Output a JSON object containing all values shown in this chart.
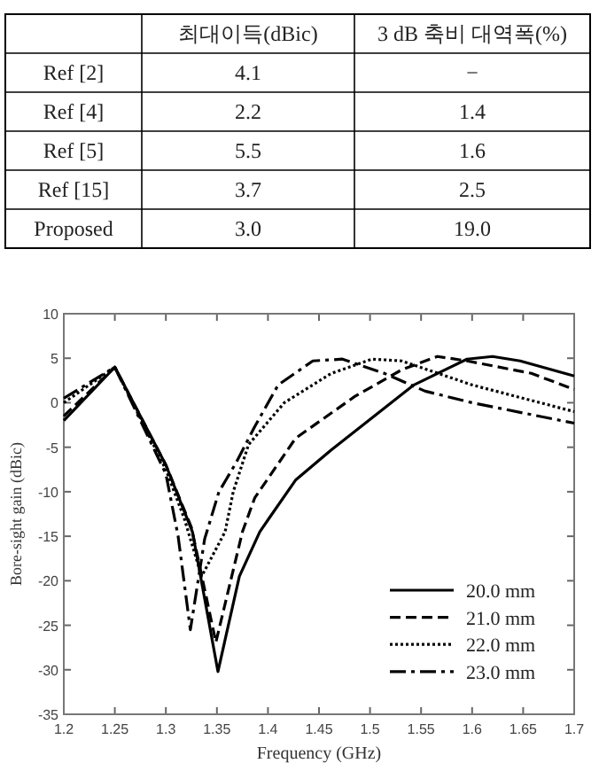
{
  "chart_data": [
    {
      "type": "other",
      "categories": [
        null,
        "최대이득(dBic)",
        "3 dB 축비 대역폭(%)"
      ],
      "y_categories": [
        "Ref [2]",
        "Ref [4]",
        "Ref [5]",
        "Ref [15]",
        "Proposed"
      ],
      "cell_labels": [
        [
          "4.1",
          "−"
        ],
        [
          "2.2",
          "1.4"
        ],
        [
          "5.5",
          "1.6"
        ],
        [
          "3.7",
          "2.5"
        ],
        [
          "3.0",
          "19.0"
        ]
      ]
    },
    {
      "type": "line",
      "xlabel": "Frequency (GHz)",
      "ylabel": "Bore-sight gain (dBic)",
      "xlim": [
        1.2,
        1.7
      ],
      "ylim": [
        -35,
        10
      ],
      "xticks": [
        1.2,
        1.25,
        1.3,
        1.35,
        1.4,
        1.45,
        1.5,
        1.55,
        1.6,
        1.65,
        1.7
      ],
      "yticks": [
        -35,
        -30,
        -25,
        -20,
        -15,
        -10,
        -5,
        0,
        5,
        10
      ],
      "grid": false,
      "legend": "bottom right",
      "series": [
        {
          "name": "20.0 mm",
          "color": "#000000",
          "line_style": "solid",
          "x": [
            1.2,
            1.25,
            1.3,
            1.326,
            1.351,
            1.372,
            1.392,
            1.401,
            1.427,
            1.462,
            1.543,
            1.595,
            1.62,
            1.647,
            1.7
          ],
          "values": [
            -2,
            4,
            -7,
            -14.5,
            -30.2,
            -19.5,
            -14.5,
            -13,
            -8.7,
            -5.3,
            2,
            4.9,
            5.2,
            4.7,
            3
          ]
        },
        {
          "name": "21.0 mm",
          "color": "#000000",
          "line_style": "dashed",
          "x": [
            1.2,
            1.25,
            1.3,
            1.325,
            1.349,
            1.375,
            1.387,
            1.427,
            1.485,
            1.531,
            1.566,
            1.595,
            1.658,
            1.7
          ],
          "values": [
            -1.5,
            4,
            -7,
            -14,
            -26.9,
            -14.5,
            -10.7,
            -4,
            0.7,
            3.7,
            5.2,
            4.7,
            3.3,
            1.5
          ]
        },
        {
          "name": "22.0 mm",
          "color": "#000000",
          "line_style": "dotted",
          "x": [
            1.2,
            1.25,
            1.3,
            1.318,
            1.335,
            1.358,
            1.366,
            1.381,
            1.416,
            1.462,
            1.502,
            1.531,
            1.6,
            1.7
          ],
          "values": [
            0,
            4,
            -7.5,
            -13,
            -19.5,
            -14.5,
            -10,
            -4.7,
            0,
            3.3,
            4.9,
            4.7,
            2,
            -1
          ]
        },
        {
          "name": "23.0 mm",
          "color": "#000000",
          "line_style": "dashdot",
          "x": [
            1.2,
            1.25,
            1.3,
            1.312,
            1.324,
            1.338,
            1.352,
            1.369,
            1.387,
            1.41,
            1.444,
            1.473,
            1.514,
            1.554,
            1.6,
            1.7
          ],
          "values": [
            0.5,
            4,
            -8,
            -15,
            -25.5,
            -15.3,
            -10,
            -6.7,
            -2.7,
            2,
            4.7,
            4.9,
            3.3,
            1.3,
            0,
            -2.3
          ]
        }
      ]
    }
  ]
}
